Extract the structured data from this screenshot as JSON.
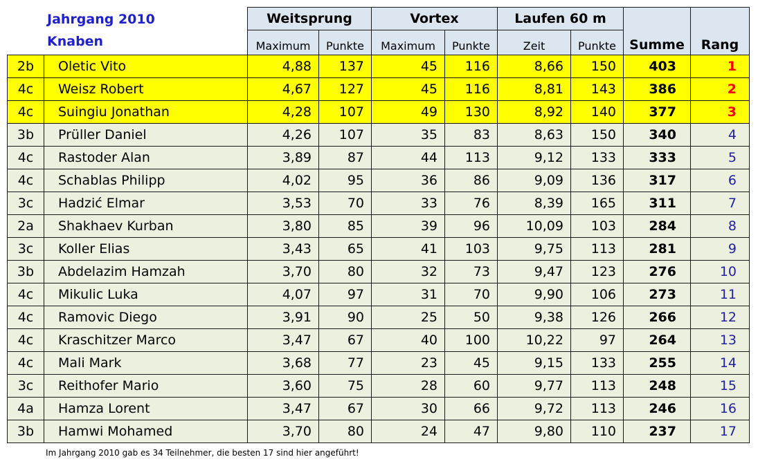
{
  "header": {
    "title_line1": "Jahrgang 2010",
    "title_line2": "Knaben",
    "group_weitsprung": "Weitsprung",
    "group_vortex": "Vortex",
    "group_laufen": "Laufen 60 m",
    "sub_maximum_1": "Maximum",
    "sub_punkte_1": "Punkte",
    "sub_maximum_2": "Maximum",
    "sub_punkte_2": "Punkte",
    "sub_zeit": "Zeit",
    "sub_punkte_3": "Punkte",
    "summe": "Summe",
    "rang": "Rang"
  },
  "rows": [
    {
      "klasse": "2b",
      "name": "Oletic Vito",
      "ws_max": "4,88",
      "ws_pkt": "137",
      "vx_max": "45",
      "vx_pkt": "116",
      "lf_zeit": "8,66",
      "lf_pkt": "150",
      "summe": "403",
      "rang": "1"
    },
    {
      "klasse": "4c",
      "name": "Weisz Robert",
      "ws_max": "4,67",
      "ws_pkt": "127",
      "vx_max": "45",
      "vx_pkt": "116",
      "lf_zeit": "8,81",
      "lf_pkt": "143",
      "summe": "386",
      "rang": "2"
    },
    {
      "klasse": "4c",
      "name": "Suingiu Jonathan",
      "ws_max": "4,28",
      "ws_pkt": "107",
      "vx_max": "49",
      "vx_pkt": "130",
      "lf_zeit": "8,92",
      "lf_pkt": "140",
      "summe": "377",
      "rang": "3"
    },
    {
      "klasse": "3b",
      "name": "Prüller Daniel",
      "ws_max": "4,26",
      "ws_pkt": "107",
      "vx_max": "35",
      "vx_pkt": "83",
      "lf_zeit": "8,63",
      "lf_pkt": "150",
      "summe": "340",
      "rang": "4"
    },
    {
      "klasse": "4c",
      "name": "Rastoder Alan",
      "ws_max": "3,89",
      "ws_pkt": "87",
      "vx_max": "44",
      "vx_pkt": "113",
      "lf_zeit": "9,12",
      "lf_pkt": "133",
      "summe": "333",
      "rang": "5"
    },
    {
      "klasse": "4c",
      "name": "Schablas Philipp",
      "ws_max": "4,02",
      "ws_pkt": "95",
      "vx_max": "36",
      "vx_pkt": "86",
      "lf_zeit": "9,09",
      "lf_pkt": "136",
      "summe": "317",
      "rang": "6"
    },
    {
      "klasse": "3c",
      "name": "Hadzić Elmar",
      "ws_max": "3,53",
      "ws_pkt": "70",
      "vx_max": "33",
      "vx_pkt": "76",
      "lf_zeit": "8,39",
      "lf_pkt": "165",
      "summe": "311",
      "rang": "7"
    },
    {
      "klasse": "2a",
      "name": "Shakhaev Kurban",
      "ws_max": "3,80",
      "ws_pkt": "85",
      "vx_max": "39",
      "vx_pkt": "96",
      "lf_zeit": "10,09",
      "lf_pkt": "103",
      "summe": "284",
      "rang": "8"
    },
    {
      "klasse": "3c",
      "name": "Koller Elias",
      "ws_max": "3,43",
      "ws_pkt": "65",
      "vx_max": "41",
      "vx_pkt": "103",
      "lf_zeit": "9,75",
      "lf_pkt": "113",
      "summe": "281",
      "rang": "9"
    },
    {
      "klasse": "3b",
      "name": "Abdelazim Hamzah",
      "ws_max": "3,70",
      "ws_pkt": "80",
      "vx_max": "32",
      "vx_pkt": "73",
      "lf_zeit": "9,47",
      "lf_pkt": "123",
      "summe": "276",
      "rang": "10"
    },
    {
      "klasse": "4c",
      "name": "Mikulic Luka",
      "ws_max": "4,07",
      "ws_pkt": "97",
      "vx_max": "31",
      "vx_pkt": "70",
      "lf_zeit": "9,90",
      "lf_pkt": "106",
      "summe": "273",
      "rang": "11"
    },
    {
      "klasse": "4c",
      "name": "Ramovic Diego",
      "ws_max": "3,91",
      "ws_pkt": "90",
      "vx_max": "25",
      "vx_pkt": "50",
      "lf_zeit": "9,38",
      "lf_pkt": "126",
      "summe": "266",
      "rang": "12"
    },
    {
      "klasse": "4c",
      "name": "Kraschitzer Marco",
      "ws_max": "3,47",
      "ws_pkt": "67",
      "vx_max": "40",
      "vx_pkt": "100",
      "lf_zeit": "10,22",
      "lf_pkt": "97",
      "summe": "264",
      "rang": "13"
    },
    {
      "klasse": "4c",
      "name": "Mali Mark",
      "ws_max": "3,68",
      "ws_pkt": "77",
      "vx_max": "23",
      "vx_pkt": "45",
      "lf_zeit": "9,15",
      "lf_pkt": "133",
      "summe": "255",
      "rang": "14"
    },
    {
      "klasse": "3c",
      "name": "Reithofer Mario",
      "ws_max": "3,60",
      "ws_pkt": "75",
      "vx_max": "28",
      "vx_pkt": "60",
      "lf_zeit": "9,77",
      "lf_pkt": "113",
      "summe": "248",
      "rang": "15"
    },
    {
      "klasse": "4a",
      "name": "Hamza Lorent",
      "ws_max": "3,47",
      "ws_pkt": "67",
      "vx_max": "30",
      "vx_pkt": "66",
      "lf_zeit": "9,72",
      "lf_pkt": "113",
      "summe": "246",
      "rang": "16"
    },
    {
      "klasse": "3b",
      "name": "Hamwi Mohamed",
      "ws_max": "3,70",
      "ws_pkt": "80",
      "vx_max": "24",
      "vx_pkt": "47",
      "lf_zeit": "9,80",
      "lf_pkt": "110",
      "summe": "237",
      "rang": "17"
    }
  ],
  "highlight": {
    "top_color": "#ffff00",
    "rest_color": "#ebf1de",
    "header_color": "#dce6f1",
    "top_rank_color": "#ff0000",
    "rank_color": "#1f1fa0"
  },
  "footnote": "Im Jahrgang 2010 gab es 34 Teilnehmer, die besten 17 sind hier angeführt!"
}
